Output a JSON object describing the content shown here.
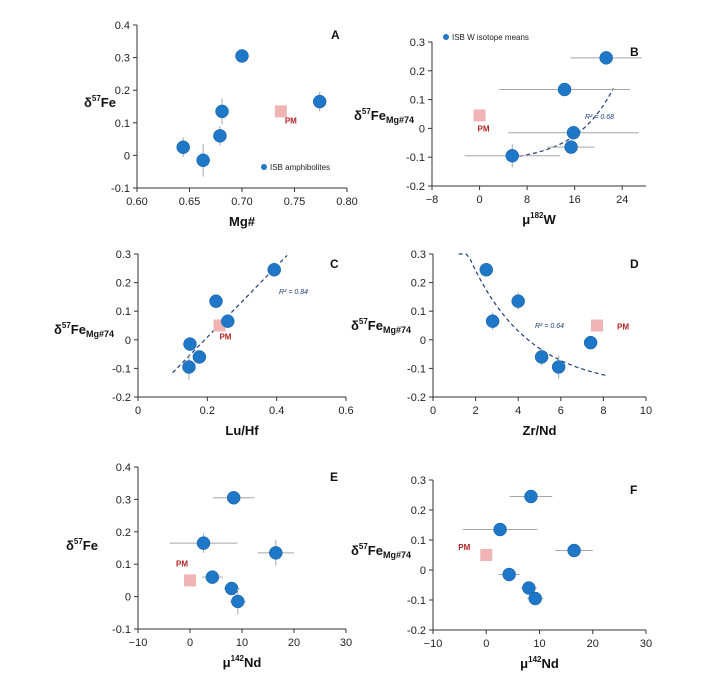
{
  "colors": {
    "point": "#1f77c8",
    "pm": "#f0b4b4",
    "trend": "#1f3f7a",
    "errorbar": "#a6a6a6",
    "pm_label": "#b22222"
  },
  "chart_data": [
    {
      "id": "A",
      "type": "scatter",
      "panel_label": "A",
      "xlabel": {
        "main": "Mg#"
      },
      "ylabel": {
        "main": "δ",
        "sup": "57",
        "tail": "Fe",
        "sub": ""
      },
      "xlim": [
        0.6,
        0.8
      ],
      "ylim": [
        -0.1,
        0.4
      ],
      "xticks": [
        "0.60",
        "0.65",
        "0.70",
        "0.75",
        "0.80"
      ],
      "xtick_values": [
        0.6,
        0.65,
        0.7,
        0.75,
        0.8
      ],
      "yticks": [
        "-0.1",
        "0",
        "0.1",
        "0.2",
        "0.3",
        "0.4"
      ],
      "ytick_values": [
        -0.1,
        0,
        0.1,
        0.2,
        0.3,
        0.4
      ],
      "points": [
        {
          "x": 0.644,
          "y": 0.025,
          "yerr": 0.03
        },
        {
          "x": 0.663,
          "y": -0.015,
          "yerr": 0.05
        },
        {
          "x": 0.679,
          "y": 0.06,
          "yerr": 0.03
        },
        {
          "x": 0.681,
          "y": 0.135,
          "yerr": 0.04
        },
        {
          "x": 0.7,
          "y": 0.305,
          "yerr": 0.0
        },
        {
          "x": 0.774,
          "y": 0.165,
          "yerr": 0.03
        }
      ],
      "pm": {
        "x": 0.737,
        "y": 0.135,
        "label": "PM"
      },
      "legend": "ISB amphibolites"
    },
    {
      "id": "B",
      "type": "scatter",
      "panel_label": "B",
      "xlabel": {
        "main": "μ",
        "sup": "182",
        "tail": "W"
      },
      "ylabel": {
        "main": "δ",
        "sup": "57",
        "tail": "Fe",
        "sub": "Mg#74"
      },
      "xlim": [
        -8,
        28
      ],
      "ylim": [
        -0.2,
        0.3
      ],
      "xticks": [
        "−8",
        "0",
        "8",
        "16",
        "24"
      ],
      "xtick_values": [
        -8,
        0,
        8,
        16,
        24
      ],
      "yticks": [
        "-0.2",
        "-0.1",
        "0",
        "0.1",
        "0.2",
        "0.3"
      ],
      "ytick_values": [
        -0.2,
        -0.1,
        0,
        0.1,
        0.2,
        0.3
      ],
      "points": [
        {
          "x": 5.5,
          "y": -0.095,
          "xerr": 8,
          "yerr": 0.04
        },
        {
          "x": 14.3,
          "y": 0.135,
          "xerr": 11,
          "yerr": 0.02
        },
        {
          "x": 15.4,
          "y": -0.065,
          "xerr": 4,
          "yerr": 0.02
        },
        {
          "x": 15.8,
          "y": -0.015,
          "xerr": 11,
          "yerr": 0.02
        },
        {
          "x": 21.3,
          "y": 0.245,
          "xerr": 6,
          "yerr": 0.02
        }
      ],
      "pm": {
        "x": 0,
        "y": 0.045,
        "label": "PM"
      },
      "trend": {
        "type": "exp",
        "a": -0.1,
        "b": 0.35,
        "c": 5.5,
        "k": 0.068,
        "xmin": 5.5,
        "xmax": 22.5
      },
      "r2": "R² = 0.68",
      "legend": "ISB W isotope means"
    },
    {
      "id": "C",
      "type": "scatter",
      "panel_label": "C",
      "xlabel": {
        "main": "Lu/Hf"
      },
      "ylabel": {
        "main": "δ",
        "sup": "57",
        "tail": "Fe",
        "sub": "Mg#74"
      },
      "xlim": [
        0,
        0.6
      ],
      "ylim": [
        -0.2,
        0.3
      ],
      "xticks": [
        "0",
        "0.2",
        "0.4",
        "0.6"
      ],
      "xtick_values": [
        0,
        0.2,
        0.4,
        0.6
      ],
      "yticks": [
        "-0.2",
        "-0.1",
        "0",
        "0.1",
        "0.2",
        "0.3"
      ],
      "ytick_values": [
        -0.2,
        -0.1,
        0,
        0.1,
        0.2,
        0.3
      ],
      "points": [
        {
          "x": 0.147,
          "y": -0.095,
          "yerr": 0.045
        },
        {
          "x": 0.15,
          "y": -0.015,
          "yerr": 0.02
        },
        {
          "x": 0.177,
          "y": -0.06,
          "yerr": 0.02
        },
        {
          "x": 0.225,
          "y": 0.135,
          "yerr": 0.02
        },
        {
          "x": 0.259,
          "y": 0.065,
          "yerr": 0.02
        },
        {
          "x": 0.393,
          "y": 0.245,
          "yerr": 0.02
        }
      ],
      "pm": {
        "x": 0.235,
        "y": 0.05,
        "label": "PM"
      },
      "trend": {
        "type": "linear",
        "xmin": 0.1,
        "xmax": 0.43,
        "y1": -0.115,
        "y2": 0.295
      },
      "r2": "R² = 0.84"
    },
    {
      "id": "D",
      "type": "scatter",
      "panel_label": "D",
      "xlabel": {
        "main": "Zr/Nd"
      },
      "ylabel": {
        "main": "δ",
        "sup": "57",
        "tail": "Fe",
        "sub": "Mg#74"
      },
      "xlim": [
        0,
        10
      ],
      "ylim": [
        -0.2,
        0.3
      ],
      "xticks": [
        "0",
        "2",
        "4",
        "6",
        "8",
        "10"
      ],
      "xtick_values": [
        0,
        2,
        4,
        6,
        8,
        10
      ],
      "yticks": [
        "-0.2",
        "-0.1",
        "0",
        "0.1",
        "0.2",
        "0.3"
      ],
      "ytick_values": [
        -0.2,
        -0.1,
        0,
        0.1,
        0.2,
        0.3
      ],
      "points": [
        {
          "x": 2.5,
          "y": 0.245,
          "yerr": 0.02
        },
        {
          "x": 2.8,
          "y": 0.065,
          "yerr": 0.03
        },
        {
          "x": 4.0,
          "y": 0.135,
          "yerr": 0.03
        },
        {
          "x": 5.1,
          "y": -0.06,
          "yerr": 0.03
        },
        {
          "x": 5.9,
          "y": -0.095,
          "yerr": 0.04
        },
        {
          "x": 7.4,
          "y": -0.01,
          "yerr": 0.0
        }
      ],
      "pm": {
        "x": 7.7,
        "y": 0.05,
        "label": "PM"
      },
      "trend": {
        "type": "exp",
        "a": -0.17,
        "b": 0.55,
        "c": 1.2,
        "k": 0.36,
        "xmin": 1.2,
        "xmax": 8.2
      },
      "r2": "R² = 0.64"
    },
    {
      "id": "E",
      "type": "scatter",
      "panel_label": "E",
      "xlabel": {
        "main": "μ",
        "sup": "142",
        "tail": "Nd"
      },
      "ylabel": {
        "main": "δ",
        "sup": "57",
        "tail": "Fe",
        "sub": ""
      },
      "xlim": [
        -10,
        30
      ],
      "ylim": [
        -0.1,
        0.4
      ],
      "xticks": [
        "−10",
        "0",
        "10",
        "20",
        "30"
      ],
      "xtick_values": [
        -10,
        0,
        10,
        20,
        30
      ],
      "yticks": [
        "-0.1",
        "0",
        "0.1",
        "0.2",
        "0.3",
        "0.4"
      ],
      "ytick_values": [
        -0.1,
        0,
        0.1,
        0.2,
        0.3,
        0.4
      ],
      "points": [
        {
          "x": 2.6,
          "y": 0.165,
          "xerr": 6.5,
          "yerr": 0.03
        },
        {
          "x": 4.3,
          "y": 0.06,
          "xerr": 2,
          "yerr": 0.02
        },
        {
          "x": 8.0,
          "y": 0.025,
          "xerr": 1.5,
          "yerr": 0.02
        },
        {
          "x": 8.4,
          "y": 0.305,
          "xerr": 4,
          "yerr": 0.02
        },
        {
          "x": 9.2,
          "y": -0.015,
          "xerr": 1.5,
          "yerr": 0.04
        },
        {
          "x": 16.5,
          "y": 0.135,
          "xerr": 3.5,
          "yerr": 0.04
        }
      ],
      "pm": {
        "x": 0,
        "y": 0.05,
        "label": "PM"
      }
    },
    {
      "id": "F",
      "type": "scatter",
      "panel_label": "F",
      "xlabel": {
        "main": "μ",
        "sup": "142",
        "tail": "Nd"
      },
      "ylabel": {
        "main": "δ",
        "sup": "57",
        "tail": "Fe",
        "sub": "Mg#74"
      },
      "xlim": [
        -10,
        30
      ],
      "ylim": [
        -0.2,
        0.3
      ],
      "xticks": [
        "−10",
        "0",
        "10",
        "20",
        "30"
      ],
      "xtick_values": [
        -10,
        0,
        10,
        20,
        30
      ],
      "yticks": [
        "-0.2",
        "-0.1",
        "0",
        "0.1",
        "0.2",
        "0.3"
      ],
      "ytick_values": [
        -0.2,
        -0.1,
        0,
        0.1,
        0.2,
        0.3
      ],
      "points": [
        {
          "x": 2.6,
          "y": 0.135,
          "xerr": 7,
          "yerr": 0.02
        },
        {
          "x": 4.3,
          "y": -0.015,
          "xerr": 2,
          "yerr": 0.02
        },
        {
          "x": 8.0,
          "y": -0.06,
          "xerr": 1.5,
          "yerr": 0.02
        },
        {
          "x": 8.4,
          "y": 0.245,
          "xerr": 4,
          "yerr": 0.02
        },
        {
          "x": 9.2,
          "y": -0.095,
          "xerr": 1.5,
          "yerr": 0.02
        },
        {
          "x": 16.5,
          "y": 0.065,
          "xerr": 3.5,
          "yerr": 0.02
        }
      ],
      "pm": {
        "x": 0,
        "y": 0.05,
        "label": "PM"
      }
    }
  ]
}
